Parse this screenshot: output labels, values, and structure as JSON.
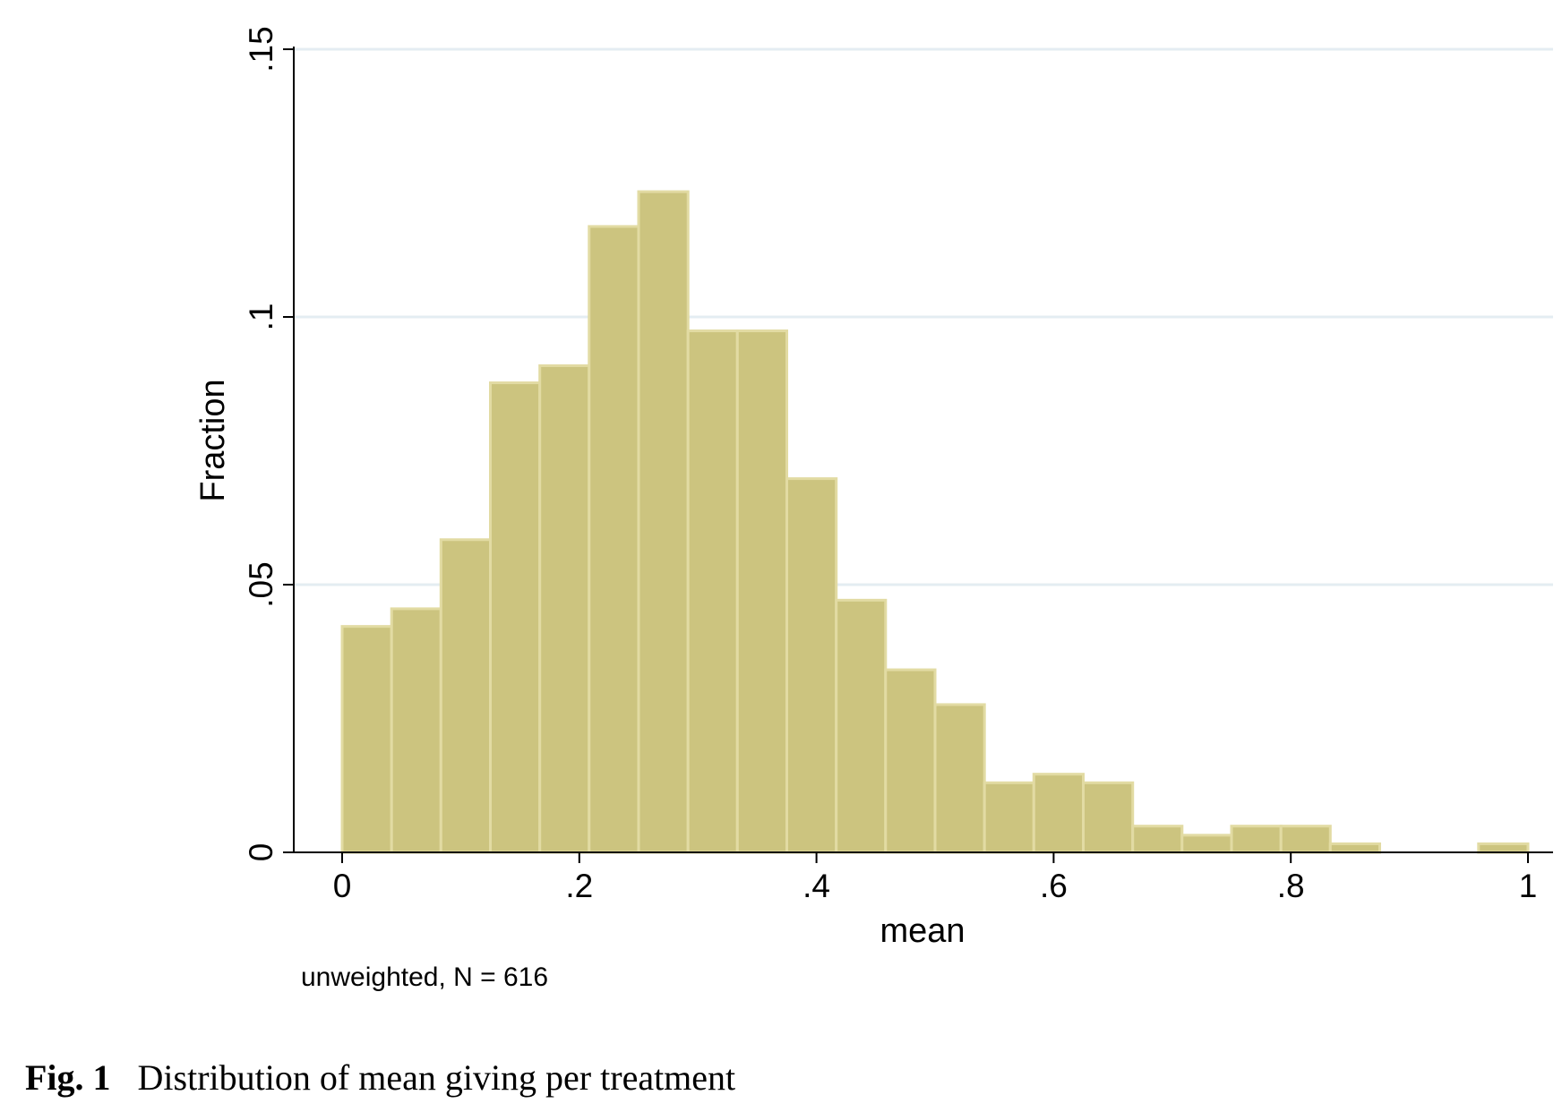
{
  "chart_data": {
    "type": "bar",
    "title": "",
    "xlabel": "mean",
    "ylabel": "Fraction",
    "note": "unweighted, N = 616",
    "xlim": [
      0,
      1
    ],
    "ylim": [
      0,
      0.15
    ],
    "x_ticks": [
      {
        "value": 0,
        "label": "0"
      },
      {
        "value": 0.2,
        "label": ".2"
      },
      {
        "value": 0.4,
        "label": ".4"
      },
      {
        "value": 0.6,
        "label": ".6"
      },
      {
        "value": 0.8,
        "label": ".8"
      },
      {
        "value": 1,
        "label": "1"
      }
    ],
    "y_ticks": [
      {
        "value": 0,
        "label": "0"
      },
      {
        "value": 0.05,
        "label": ".05"
      },
      {
        "value": 0.1,
        "label": ".1"
      },
      {
        "value": 0.15,
        "label": ".15"
      }
    ],
    "grid": true,
    "bar_color": "#ccc47f",
    "bar_edge_color": "#e2dba3",
    "grid_color": "#e4edf2",
    "bins": [
      {
        "start": 0.0,
        "end": 0.0417,
        "value": 0.0422
      },
      {
        "start": 0.0417,
        "end": 0.0833,
        "value": 0.0455
      },
      {
        "start": 0.0833,
        "end": 0.125,
        "value": 0.0584
      },
      {
        "start": 0.125,
        "end": 0.1667,
        "value": 0.0877
      },
      {
        "start": 0.1667,
        "end": 0.2083,
        "value": 0.0909
      },
      {
        "start": 0.2083,
        "end": 0.25,
        "value": 0.1169
      },
      {
        "start": 0.25,
        "end": 0.2917,
        "value": 0.1234
      },
      {
        "start": 0.2917,
        "end": 0.3333,
        "value": 0.0974
      },
      {
        "start": 0.3333,
        "end": 0.375,
        "value": 0.0974
      },
      {
        "start": 0.375,
        "end": 0.4167,
        "value": 0.0698
      },
      {
        "start": 0.4167,
        "end": 0.4583,
        "value": 0.0471
      },
      {
        "start": 0.4583,
        "end": 0.5,
        "value": 0.0341
      },
      {
        "start": 0.5,
        "end": 0.5417,
        "value": 0.0276
      },
      {
        "start": 0.5417,
        "end": 0.5833,
        "value": 0.013
      },
      {
        "start": 0.5833,
        "end": 0.625,
        "value": 0.0146
      },
      {
        "start": 0.625,
        "end": 0.6667,
        "value": 0.013
      },
      {
        "start": 0.6667,
        "end": 0.7083,
        "value": 0.0049
      },
      {
        "start": 0.7083,
        "end": 0.75,
        "value": 0.0032
      },
      {
        "start": 0.75,
        "end": 0.7917,
        "value": 0.0049
      },
      {
        "start": 0.7917,
        "end": 0.8333,
        "value": 0.0049
      },
      {
        "start": 0.8333,
        "end": 0.875,
        "value": 0.0016
      },
      {
        "start": 0.875,
        "end": 0.9167,
        "value": 0
      },
      {
        "start": 0.9167,
        "end": 0.9583,
        "value": 0
      },
      {
        "start": 0.9583,
        "end": 1.0,
        "value": 0.0016
      }
    ]
  },
  "caption": {
    "label": "Fig. 1",
    "text": "Distribution of mean giving per treatment"
  }
}
